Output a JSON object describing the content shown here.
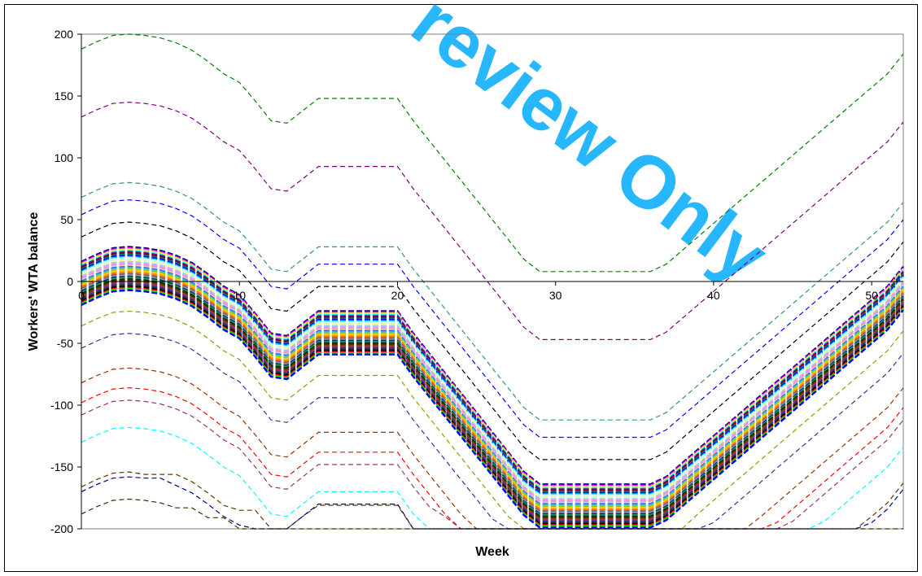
{
  "chart_data": {
    "type": "line",
    "title": "",
    "xlabel": "Week",
    "ylabel": "Workers' WTA balance",
    "xlim": [
      0,
      52
    ],
    "ylim": [
      -200,
      200
    ],
    "x_ticks": [
      "0",
      "10",
      "20",
      "30",
      "40",
      "50"
    ],
    "y_ticks": [
      "200",
      "150",
      "100",
      "50",
      "0",
      "-50",
      "-100",
      "-150",
      "-200"
    ],
    "grid": false,
    "legend": "none",
    "line_style": "dashed",
    "profile_weeks": [
      0,
      1,
      2,
      3,
      4,
      5,
      6,
      7,
      8,
      9,
      10,
      11,
      12,
      13,
      14,
      15,
      16,
      17,
      18,
      19,
      20,
      21,
      22,
      23,
      24,
      25,
      26,
      27,
      28,
      29,
      30,
      31,
      32,
      33,
      34,
      35,
      36,
      37,
      38,
      39,
      40,
      41,
      42,
      43,
      44,
      45,
      46,
      47,
      48,
      49,
      50,
      51,
      52
    ],
    "series": [
      {
        "color": "#008000",
        "values": [
          188,
          194,
          199,
          200,
          199,
          197,
          193,
          187,
          178,
          168,
          161,
          146,
          130,
          128,
          138,
          148,
          148,
          148,
          148,
          148,
          148,
          130,
          114,
          98,
          82,
          66,
          50,
          34,
          18,
          8,
          8,
          8,
          8,
          8,
          8,
          8,
          8,
          14,
          25,
          36,
          47,
          58,
          69,
          80,
          91,
          102,
          113,
          124,
          135,
          146,
          157,
          168,
          184
        ]
      },
      {
        "color": "#800080",
        "values": [
          133,
          139,
          144,
          145,
          144,
          142,
          138,
          132,
          123,
          113,
          106,
          91,
          75,
          73,
          83,
          93,
          93,
          93,
          93,
          93,
          93,
          75,
          59,
          43,
          27,
          11,
          -5,
          -21,
          -37,
          -47,
          -47,
          -47,
          -47,
          -47,
          -47,
          -47,
          -47,
          -41,
          -30,
          -19,
          -8,
          3,
          14,
          25,
          36,
          47,
          58,
          69,
          80,
          91,
          102,
          113,
          129
        ]
      },
      {
        "color": "#339966",
        "values": [
          68,
          74,
          79,
          80,
          79,
          77,
          73,
          67,
          58,
          48,
          41,
          26,
          10,
          8,
          18,
          28,
          28,
          28,
          28,
          28,
          28,
          10,
          -6,
          -22,
          -38,
          -54,
          -70,
          -86,
          -102,
          -112,
          -112,
          -112,
          -112,
          -112,
          -112,
          -112,
          -112,
          -106,
          -95,
          -84,
          -73,
          -62,
          -51,
          -40,
          -29,
          -18,
          -7,
          4,
          15,
          26,
          37,
          48,
          64
        ]
      },
      {
        "color": "#0000ff",
        "values": [
          54,
          60,
          65,
          66,
          65,
          63,
          59,
          53,
          44,
          34,
          27,
          12,
          -4,
          -6,
          4,
          14,
          14,
          14,
          14,
          14,
          14,
          -4,
          -20,
          -36,
          -52,
          -68,
          -84,
          -100,
          -116,
          -126,
          -126,
          -126,
          -126,
          -126,
          -126,
          -126,
          -126,
          -120,
          -109,
          -98,
          -87,
          -76,
          -65,
          -54,
          -43,
          -32,
          -21,
          -10,
          1,
          12,
          23,
          34,
          50
        ]
      },
      {
        "color": "#000000",
        "values": [
          36,
          42,
          47,
          48,
          47,
          45,
          41,
          35,
          26,
          16,
          9,
          -6,
          -22,
          -24,
          -14,
          -4,
          -4,
          -4,
          -4,
          -4,
          -4,
          -22,
          -38,
          -54,
          -70,
          -86,
          -102,
          -118,
          -134,
          -144,
          -144,
          -144,
          -144,
          -144,
          -144,
          -144,
          -144,
          -138,
          -127,
          -116,
          -105,
          -94,
          -83,
          -72,
          -61,
          -50,
          -39,
          -28,
          -17,
          -6,
          5,
          16,
          32
        ]
      },
      {
        "color": "#999900",
        "values": [
          -36,
          -30,
          -25,
          -24,
          -25,
          -27,
          -31,
          -37,
          -46,
          -56,
          -63,
          -78,
          -94,
          -96,
          -86,
          -76,
          -76,
          -76,
          -76,
          -76,
          -76,
          -94,
          -110,
          -126,
          -142,
          -158,
          -174,
          -190,
          -200,
          -200,
          -200,
          -200,
          -200,
          -200,
          -200,
          -200,
          -200,
          -200,
          -200,
          -188,
          -177,
          -166,
          -155,
          -144,
          -133,
          -122,
          -111,
          -100,
          -89,
          -78,
          -67,
          -56,
          -40
        ]
      },
      {
        "color": "#333399",
        "values": [
          -54,
          -48,
          -43,
          -42,
          -43,
          -45,
          -49,
          -55,
          -64,
          -74,
          -81,
          -96,
          -112,
          -114,
          -104,
          -94,
          -94,
          -94,
          -94,
          -94,
          -94,
          -112,
          -128,
          -144,
          -160,
          -176,
          -192,
          -200,
          -200,
          -200,
          -200,
          -200,
          -200,
          -200,
          -200,
          -200,
          -200,
          -200,
          -200,
          -200,
          -195,
          -184,
          -173,
          -162,
          -151,
          -140,
          -129,
          -118,
          -107,
          -96,
          -85,
          -74,
          -58
        ]
      },
      {
        "color": "#993300",
        "values": [
          -82,
          -76,
          -71,
          -70,
          -71,
          -73,
          -77,
          -83,
          -92,
          -102,
          -109,
          -124,
          -140,
          -142,
          -132,
          -122,
          -122,
          -122,
          -122,
          -122,
          -122,
          -140,
          -156,
          -172,
          -188,
          -200,
          -200,
          -200,
          -200,
          -200,
          -200,
          -200,
          -200,
          -200,
          -200,
          -200,
          -200,
          -200,
          -200,
          -200,
          -200,
          -200,
          -200,
          -190,
          -179,
          -168,
          -157,
          -146,
          -135,
          -124,
          -113,
          -102,
          -86
        ]
      },
      {
        "color": "#ff0000",
        "values": [
          -98,
          -92,
          -87,
          -86,
          -87,
          -89,
          -93,
          -99,
          -108,
          -118,
          -125,
          -140,
          -156,
          -158,
          -148,
          -138,
          -138,
          -138,
          -138,
          -138,
          -138,
          -156,
          -172,
          -188,
          -200,
          -200,
          -200,
          -200,
          -200,
          -200,
          -200,
          -200,
          -200,
          -200,
          -200,
          -200,
          -200,
          -200,
          -200,
          -200,
          -200,
          -200,
          -200,
          -200,
          -195,
          -184,
          -173,
          -162,
          -151,
          -140,
          -129,
          -118,
          -102
        ]
      },
      {
        "color": "#993366",
        "values": [
          -108,
          -102,
          -97,
          -96,
          -97,
          -99,
          -103,
          -109,
          -118,
          -128,
          -135,
          -150,
          -166,
          -168,
          -158,
          -148,
          -148,
          -148,
          -148,
          -148,
          -148,
          -166,
          -182,
          -190,
          -200,
          -200,
          -200,
          -200,
          -200,
          -200,
          -200,
          -200,
          -200,
          -200,
          -200,
          -200,
          -200,
          -200,
          -200,
          -200,
          -200,
          -200,
          -200,
          -200,
          -200,
          -194,
          -183,
          -172,
          -161,
          -150,
          -139,
          -128,
          -112
        ]
      },
      {
        "color": "#00ffff",
        "values": [
          -130,
          -124,
          -119,
          -118,
          -119,
          -121,
          -125,
          -131,
          -140,
          -150,
          -157,
          -172,
          -188,
          -190,
          -180,
          -170,
          -170,
          -170,
          -170,
          -170,
          -170,
          -188,
          -200,
          -200,
          -200,
          -200,
          -200,
          -200,
          -200,
          -200,
          -200,
          -200,
          -200,
          -200,
          -200,
          -200,
          -200,
          -200,
          -200,
          -200,
          -200,
          -200,
          -200,
          -200,
          -200,
          -200,
          -200,
          -194,
          -183,
          -172,
          -161,
          -150,
          -134
        ]
      },
      {
        "color": "#663300",
        "values": [
          -166,
          -160,
          -155,
          -154,
          -156,
          -156,
          -156,
          -162,
          -171,
          -181,
          -185,
          -185,
          -200,
          -200,
          -190,
          -181,
          -181,
          -181,
          -181,
          -181,
          -181,
          -200,
          -200,
          -200,
          -200,
          -200,
          -200,
          -200,
          -200,
          -200,
          -200,
          -200,
          -200,
          -200,
          -200,
          -200,
          -200,
          -200,
          -200,
          -200,
          -200,
          -200,
          -200,
          -200,
          -200,
          -200,
          -200,
          -200,
          -200,
          -200,
          -190,
          -179,
          -163
        ]
      },
      {
        "color": "#000080",
        "values": [
          -170,
          -164,
          -159,
          -158,
          -159,
          -159,
          -165,
          -171,
          -180,
          -190,
          -197,
          -200,
          -200,
          -200,
          -190,
          -180,
          -180,
          -180,
          -180,
          -180,
          -180,
          -200,
          -200,
          -200,
          -200,
          -200,
          -200,
          -200,
          -200,
          -200,
          -200,
          -200,
          -200,
          -200,
          -200,
          -200,
          -200,
          -200,
          -200,
          -200,
          -200,
          -200,
          -200,
          -200,
          -200,
          -200,
          -200,
          -200,
          -200,
          -200,
          -195,
          -184,
          -168
        ]
      },
      {
        "color": "#333300",
        "values": [
          -188,
          -182,
          -177,
          -176,
          -177,
          -179,
          -183,
          -183,
          -191,
          -191,
          -200,
          -200,
          -200,
          -200,
          -200,
          -200,
          -200,
          -200,
          -200,
          -200,
          -200,
          -200,
          -200,
          -200,
          -200,
          -200,
          -200,
          -200,
          -200,
          -200,
          -200,
          -200,
          -200,
          -200,
          -200,
          -200,
          -200,
          -200,
          -200,
          -200,
          -200,
          -200,
          -200,
          -200,
          -200,
          -200,
          -200,
          -200,
          -200,
          -200,
          -200,
          -200,
          -200
        ]
      }
    ],
    "band": {
      "colors": [
        "#000080",
        "#ff00ff",
        "#ffff00",
        "#00ffff",
        "#800080",
        "#800000",
        "#008080",
        "#0000ff",
        "#00ccff",
        "#ccffff",
        "#ccffcc",
        "#ffff99",
        "#99ccff",
        "#ff99cc",
        "#cc99ff",
        "#ffcc99",
        "#3366ff",
        "#33cccc",
        "#99cc00",
        "#ffcc00",
        "#ff9900",
        "#ff6600",
        "#666699",
        "#969696",
        "#003366",
        "#339966",
        "#003300",
        "#333300",
        "#993300",
        "#993366",
        "#333399",
        "#333333",
        "#000000",
        "#ff0000",
        "#00ff00",
        "#0000ff"
      ],
      "offsets": [
        16,
        15,
        14,
        13,
        12,
        11,
        10,
        9,
        8,
        7,
        6,
        5,
        4,
        3,
        2,
        1,
        0,
        -1,
        -2,
        -3,
        -4,
        -5,
        -6,
        -7,
        -8,
        -9,
        -10,
        -11,
        -12,
        -13,
        -14,
        -15,
        -16,
        -17,
        -18,
        -19
      ],
      "base_values": [
        0,
        6,
        11,
        12,
        11,
        9,
        5,
        -1,
        -10,
        -20,
        -27,
        -42,
        -58,
        -60,
        -50,
        -40,
        -40,
        -40,
        -40,
        -40,
        -40,
        -58,
        -74,
        -90,
        -106,
        -122,
        -138,
        -154,
        -170,
        -180,
        -180,
        -180,
        -180,
        -180,
        -180,
        -180,
        -180,
        -174,
        -163,
        -152,
        -141,
        -130,
        -119,
        -108,
        -97,
        -86,
        -75,
        -64,
        -53,
        -42,
        -31,
        -20,
        -4
      ]
    }
  },
  "watermark": {
    "text": "review Only",
    "color": "#00aaff"
  }
}
